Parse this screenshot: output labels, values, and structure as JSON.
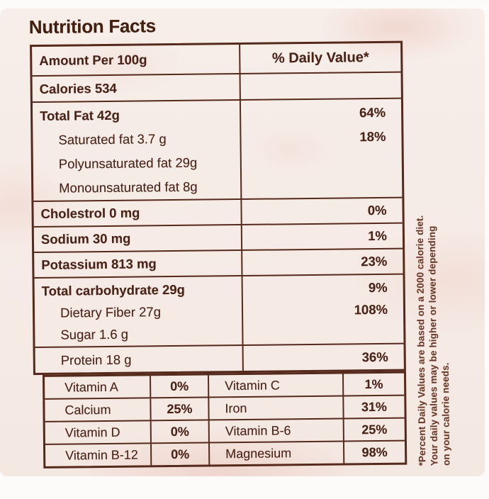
{
  "label": {
    "title": "Nutrition Facts",
    "header": {
      "amount": "Amount Per 100g",
      "daily_value": "% Daily Value*"
    },
    "calories": "Calories 534",
    "fat": {
      "lines": [
        "Total Fat 42g",
        "Saturated fat 3.7 g",
        "Polyunsaturated fat 29g",
        "Monounsaturated fat 8g"
      ],
      "values": [
        "64%",
        "18%"
      ]
    },
    "cholesterol": {
      "label": "Cholestrol 0 mg",
      "value": "0%"
    },
    "sodium": {
      "label": "Sodium 30 mg",
      "value": "1%"
    },
    "potassium": {
      "label": "Potassium 813 mg",
      "value": "23%"
    },
    "carbohydrate": {
      "lines": [
        "Total carbohydrate 29g",
        "Dietary Fiber 27g",
        "Sugar 1.6 g"
      ],
      "values": [
        "9%",
        "108%"
      ]
    },
    "protein": {
      "label": "Protein 18 g",
      "value": "36%"
    },
    "micronutrients": [
      {
        "name": "Vitamin A",
        "value": "0%",
        "name2": "Vitamin C",
        "value2": "1%"
      },
      {
        "name": "Calcium",
        "value": "25%",
        "name2": "Iron",
        "value2": "31%"
      },
      {
        "name": "Vitamin D",
        "value": "0%",
        "name2": "Vitamin B-6",
        "value2": "25%"
      },
      {
        "name": "Vitamin B-12",
        "value": "0%",
        "name2": "Magnesium",
        "value2": "98%"
      }
    ],
    "footnote": [
      "*Percent Daily Values are based on a 2000 calorie diet.",
      "Your daily values may be higher or lower depending",
      "on your calorie needs."
    ]
  },
  "colors": {
    "ink": "#4a2318",
    "border": "#55291b",
    "paper": "#f5eae4"
  }
}
